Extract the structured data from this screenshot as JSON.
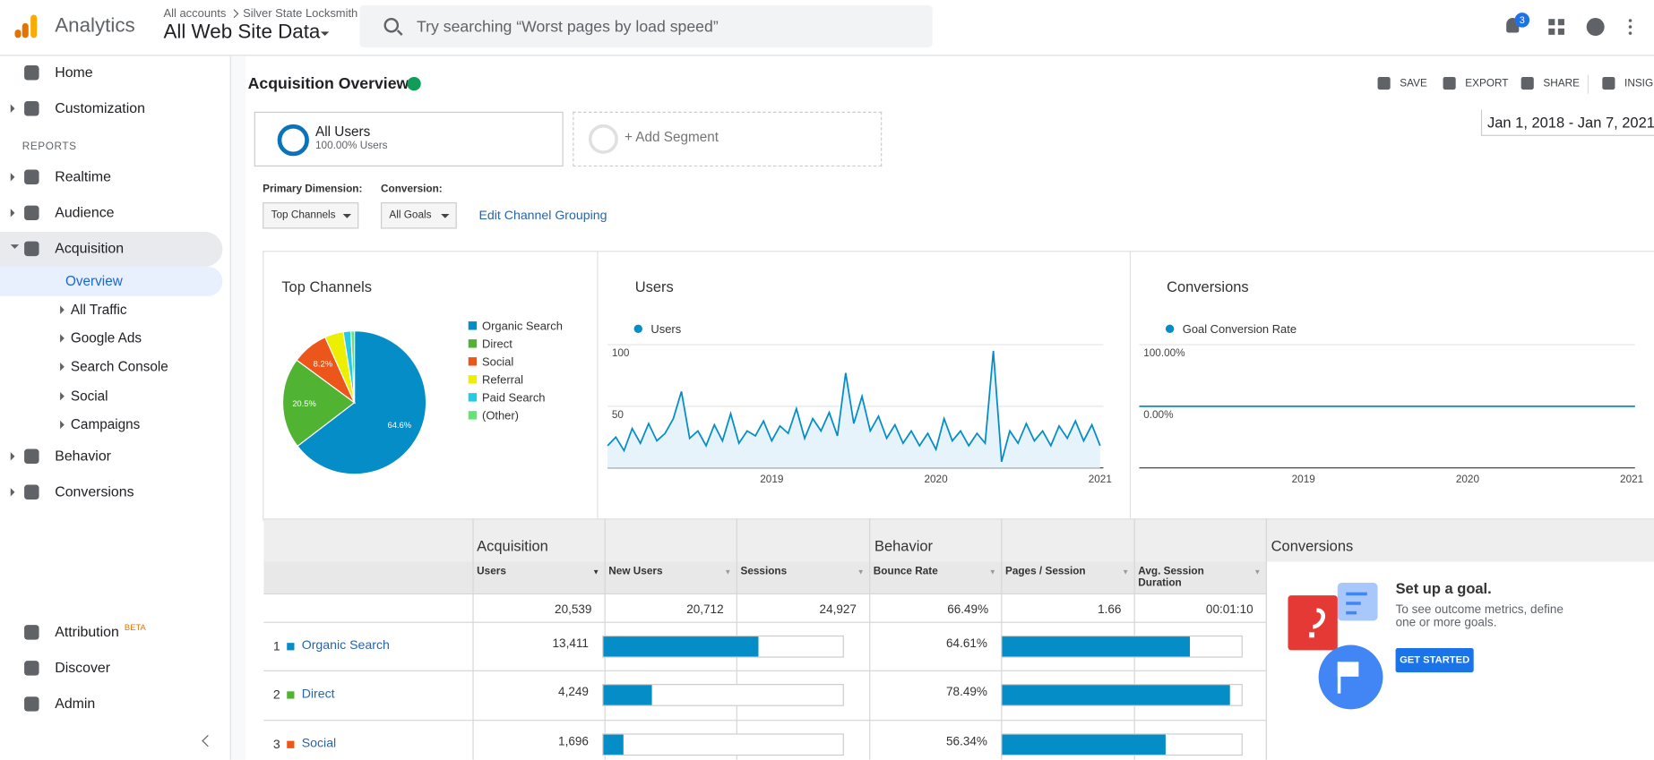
{
  "header": {
    "product": "Analytics",
    "breadcrumb": [
      "All accounts",
      "Silver State Locksmith"
    ],
    "view": "All Web Site Data",
    "search_placeholder": "Try searching “Worst pages by load speed”",
    "notifications": 3
  },
  "sidebar": {
    "nav_top": [
      "Home",
      "Customization"
    ],
    "reports_label": "REPORTS",
    "reports": [
      "Realtime",
      "Audience",
      "Acquisition"
    ],
    "acquisition_sub": [
      "Overview",
      "All Traffic",
      "Google Ads",
      "Search Console",
      "Social",
      "Campaigns"
    ],
    "reports_after": [
      "Behavior",
      "Conversions"
    ],
    "bottom": [
      "Attribution",
      "Discover",
      "Admin"
    ],
    "beta": "BETA"
  },
  "page": {
    "title": "Acquisition Overview",
    "actions": [
      "SAVE",
      "EXPORT",
      "SHARE",
      "INSIGH"
    ],
    "segment": {
      "name": "All Users",
      "detail": "100.00% Users"
    },
    "add_segment": "+ Add Segment",
    "date_range": "Jan 1, 2018 - Jan 7, 2021",
    "primary_dimension_label": "Primary Dimension:",
    "primary_dimension": "Top Channels",
    "conversion_label": "Conversion:",
    "conversion": "All Goals",
    "edit_link": "Edit Channel Grouping"
  },
  "chart_data": [
    {
      "type": "pie",
      "title": "Top Channels",
      "categories": [
        "Organic Search",
        "Direct",
        "Social",
        "Referral",
        "Paid Search",
        "(Other)"
      ],
      "values": [
        64.6,
        20.5,
        8.2,
        4.2,
        1.7,
        0.8
      ],
      "value_labels": [
        "64.6%",
        "20.5%",
        "8.2%",
        null,
        null,
        null
      ],
      "colors": [
        "#058dc7",
        "#50b432",
        "#ed561b",
        "#edef00",
        "#24cbe5",
        "#64e572"
      ]
    },
    {
      "type": "line",
      "title": "Users",
      "x": [
        2018,
        2018.05,
        2018.1,
        2018.15,
        2018.2,
        2018.25,
        2018.3,
        2018.35,
        2018.4,
        2018.45,
        2018.5,
        2018.55,
        2018.6,
        2018.65,
        2018.7,
        2018.75,
        2018.8,
        2018.85,
        2018.9,
        2018.95,
        2019,
        2019.05,
        2019.1,
        2019.15,
        2019.2,
        2019.25,
        2019.3,
        2019.35,
        2019.4,
        2019.45,
        2019.5,
        2019.55,
        2019.6,
        2019.65,
        2019.7,
        2019.75,
        2019.8,
        2019.85,
        2019.9,
        2019.95,
        2020,
        2020.05,
        2020.1,
        2020.15,
        2020.2,
        2020.25,
        2020.3,
        2020.35,
        2020.4,
        2020.45,
        2020.5,
        2020.55,
        2020.6,
        2020.65,
        2020.7,
        2020.75,
        2020.8,
        2020.85,
        2020.9,
        2020.95,
        2021
      ],
      "series": [
        {
          "name": "Users",
          "color": "#058dc7",
          "values": [
            18,
            25,
            14,
            32,
            20,
            36,
            22,
            28,
            40,
            62,
            24,
            30,
            18,
            35,
            22,
            44,
            20,
            30,
            26,
            38,
            22,
            34,
            28,
            48,
            24,
            40,
            30,
            45,
            26,
            77,
            36,
            58,
            30,
            42,
            24,
            35,
            20,
            30,
            18,
            28,
            15,
            40,
            22,
            30,
            18,
            28,
            20,
            95,
            5,
            30,
            20,
            36,
            22,
            30,
            18,
            34,
            24,
            38,
            22,
            35,
            18
          ]
        }
      ],
      "xlim": [
        2018,
        2021.02
      ],
      "xticks": [
        2019,
        2020,
        2021
      ],
      "ylim": [
        0,
        100
      ],
      "yticks": [
        50,
        100
      ],
      "grid": true
    },
    {
      "type": "line",
      "title": "Conversions",
      "x": [
        2018,
        2021.02
      ],
      "series": [
        {
          "name": "Goal Conversion Rate",
          "color": "#058dc7",
          "values": [
            0,
            0
          ]
        }
      ],
      "xlim": [
        2018,
        2021.02
      ],
      "xticks": [
        2019,
        2020,
        2021
      ],
      "ylim": [
        -100,
        100
      ],
      "yticks": [
        {
          "value": 0,
          "label": "0.00%"
        },
        {
          "value": 100,
          "label": "100.00%"
        }
      ],
      "grid": true
    }
  ],
  "table": {
    "group_headers": [
      "Acquisition",
      "Behavior",
      "Conversions"
    ],
    "columns": [
      "Users",
      "New Users",
      "Sessions",
      "Bounce Rate",
      "Pages / Session",
      "Avg. Session Duration"
    ],
    "totals": [
      "20,539",
      "20,712",
      "24,927",
      "66.49%",
      "1.66",
      "00:01:10"
    ],
    "rows": [
      {
        "rank": 1,
        "channel": "Organic Search",
        "users": "13,411",
        "new_users_share": 64.7,
        "bounce_rate": "64.61%",
        "pages_session_share": 78.4
      },
      {
        "rank": 2,
        "channel": "Direct",
        "users": "4,249",
        "new_users_share": 20.4,
        "bounce_rate": "78.49%",
        "pages_session_share": 95.2
      },
      {
        "rank": 3,
        "channel": "Social",
        "users": "1,696",
        "new_users_share": 8.2,
        "bounce_rate": "56.34%",
        "pages_session_share": 68.3
      }
    ]
  },
  "goal": {
    "title": "Set up a goal.",
    "text": "To see outcome metrics, define one or more goals.",
    "button": "GET STARTED"
  }
}
